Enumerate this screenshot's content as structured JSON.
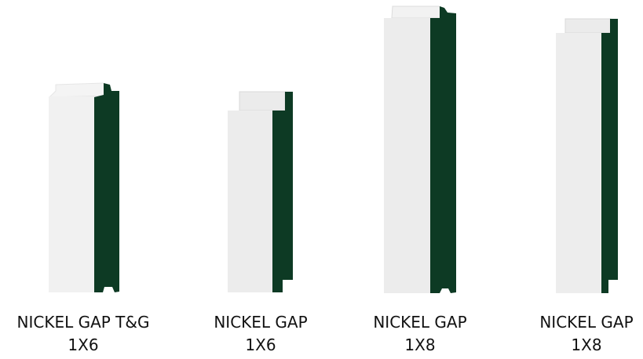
{
  "colors": {
    "face": "#ededee",
    "face_light": "#f1f1f1",
    "lip": "#e8e8e8",
    "back": "#0d3a24",
    "background": "#ffffff"
  },
  "profiles": [
    {
      "name": "NICKEL GAP T&G",
      "size": "1X6"
    },
    {
      "name": "NICKEL GAP",
      "size": "1X6"
    },
    {
      "name": "NICKEL GAP",
      "size": "1X8"
    },
    {
      "name": "NICKEL GAP",
      "size": "1X8"
    }
  ]
}
